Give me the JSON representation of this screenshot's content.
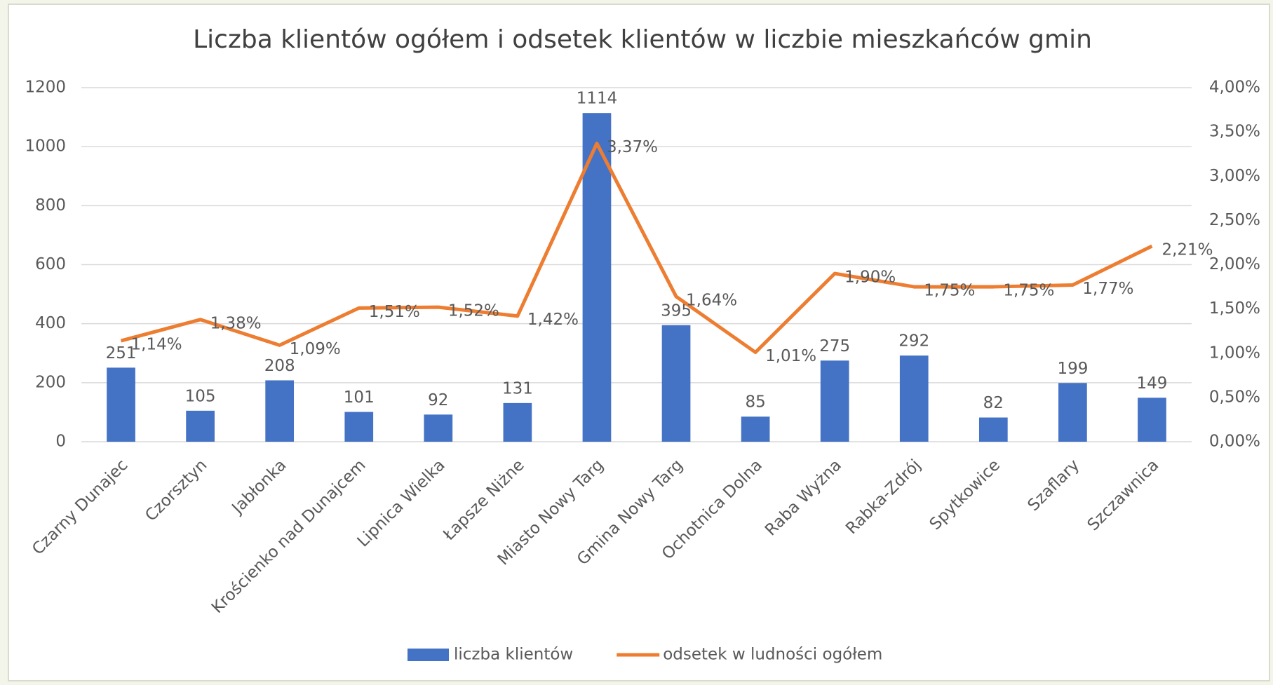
{
  "chart_data": {
    "type": "bar_line",
    "title": "Liczba klientów ogółem i odsetek klientów w liczbie mieszkańców gmin",
    "categories": [
      "Czarny Dunajec",
      "Czorsztyn",
      "Jabłonka",
      "Krościenko nad Dunajcem",
      "Lipnica Wielka",
      "Łapsze Niżne",
      "Miasto Nowy Targ",
      "Gmina Nowy Targ",
      "Ochotnica Dolna",
      "Raba Wyżna",
      "Rabka-Zdrój",
      "Spytkowice",
      "Szaflary",
      "Szczawnica"
    ],
    "series": [
      {
        "name": "liczba klientów",
        "color": "#4472c4",
        "type": "bar",
        "values": [
          251,
          105,
          208,
          101,
          92,
          131,
          1114,
          395,
          85,
          275,
          292,
          82,
          199,
          149
        ]
      },
      {
        "name": "odsetek w ludności ogółem",
        "color": "#ed7d31",
        "type": "line",
        "axis": "y2",
        "values": [
          1.14,
          1.38,
          1.09,
          1.51,
          1.52,
          1.42,
          3.37,
          1.64,
          1.01,
          1.9,
          1.75,
          1.75,
          1.77,
          2.21
        ],
        "value_labels": [
          "1,14%",
          "1,38%",
          "1,09%",
          "1,51%",
          "1,52%",
          "1,42%",
          "3,37%",
          "1,64%",
          "1,01%",
          "1,90%",
          "1,75%",
          "1,75%",
          "1,77%",
          "2,21%"
        ]
      }
    ],
    "ylim": [
      0,
      1200
    ],
    "yticks": [
      0,
      200,
      400,
      600,
      800,
      1000,
      1200
    ],
    "y2lim": [
      0,
      4
    ],
    "y2ticks": [
      {
        "value": 0,
        "label": "0,00%"
      },
      {
        "value": 0.5,
        "label": "0,50%"
      },
      {
        "value": 1,
        "label": "1,00%"
      },
      {
        "value": 1.5,
        "label": "1,50%"
      },
      {
        "value": 2,
        "label": "2,00%"
      },
      {
        "value": 2.5,
        "label": "2,50%"
      },
      {
        "value": 3,
        "label": "3,00%"
      },
      {
        "value": 3.5,
        "label": "3,50%"
      },
      {
        "value": 4,
        "label": "4,00%"
      }
    ],
    "grid": true,
    "legend": "bottom"
  }
}
